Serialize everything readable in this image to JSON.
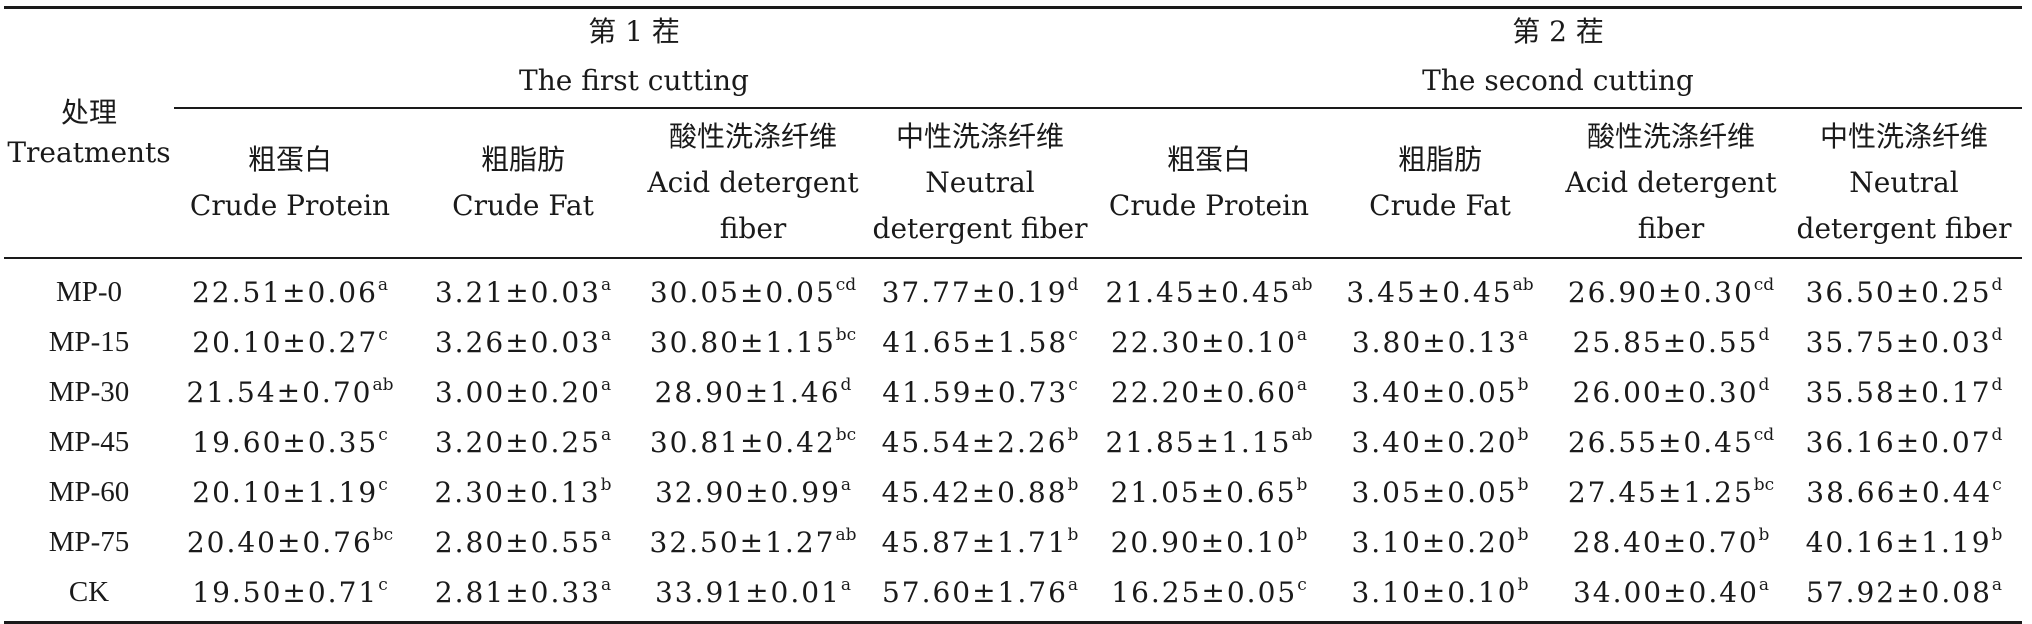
{
  "header": {
    "treatment_cn": "处理",
    "treatment_en": "Treatments",
    "groups": [
      {
        "cn": "第 1 茬",
        "en": "The first cutting"
      },
      {
        "cn": "第 2 茬",
        "en": "The second cutting"
      }
    ],
    "columns": [
      {
        "cn": "粗蛋白",
        "en1": "Crude Protein",
        "en2": ""
      },
      {
        "cn": "粗脂肪",
        "en1": "Crude Fat",
        "en2": ""
      },
      {
        "cn": "酸性洗涤纤维",
        "en1": "Acid detergent",
        "en2": "fiber"
      },
      {
        "cn": "中性洗涤纤维",
        "en1": "Neutral",
        "en2": "detergent fiber"
      }
    ]
  },
  "rows": [
    {
      "name": "MP-0",
      "cells": [
        {
          "v": "22.51±0.06",
          "s": "a"
        },
        {
          "v": "3.21±0.03",
          "s": "a"
        },
        {
          "v": "30.05±0.05",
          "s": "cd"
        },
        {
          "v": "37.77±0.19",
          "s": "d"
        },
        {
          "v": "21.45±0.45",
          "s": "ab"
        },
        {
          "v": "3.45±0.45",
          "s": "ab"
        },
        {
          "v": "26.90±0.30",
          "s": "cd"
        },
        {
          "v": "36.50±0.25",
          "s": "d"
        }
      ]
    },
    {
      "name": "MP-15",
      "cells": [
        {
          "v": "20.10±0.27",
          "s": "c"
        },
        {
          "v": "3.26±0.03",
          "s": "a"
        },
        {
          "v": "30.80±1.15",
          "s": "bc"
        },
        {
          "v": "41.65±1.58",
          "s": "c"
        },
        {
          "v": "22.30±0.10",
          "s": "a"
        },
        {
          "v": "3.80±0.13",
          "s": "a"
        },
        {
          "v": "25.85±0.55",
          "s": "d"
        },
        {
          "v": "35.75±0.03",
          "s": "d"
        }
      ]
    },
    {
      "name": "MP-30",
      "cells": [
        {
          "v": "21.54±0.70",
          "s": "ab"
        },
        {
          "v": "3.00±0.20",
          "s": "a"
        },
        {
          "v": "28.90±1.46",
          "s": "d"
        },
        {
          "v": "41.59±0.73",
          "s": "c"
        },
        {
          "v": "22.20±0.60",
          "s": "a"
        },
        {
          "v": "3.40±0.05",
          "s": "b"
        },
        {
          "v": "26.00±0.30",
          "s": "d"
        },
        {
          "v": "35.58±0.17",
          "s": "d"
        }
      ]
    },
    {
      "name": "MP-45",
      "cells": [
        {
          "v": "19.60±0.35",
          "s": "c"
        },
        {
          "v": "3.20±0.25",
          "s": "a"
        },
        {
          "v": "30.81±0.42",
          "s": "bc"
        },
        {
          "v": "45.54±2.26",
          "s": "b"
        },
        {
          "v": "21.85±1.15",
          "s": "ab"
        },
        {
          "v": "3.40±0.20",
          "s": "b"
        },
        {
          "v": "26.55±0.45",
          "s": "cd"
        },
        {
          "v": "36.16±0.07",
          "s": "d"
        }
      ]
    },
    {
      "name": "MP-60",
      "cells": [
        {
          "v": "20.10±1.19",
          "s": "c"
        },
        {
          "v": "2.30±0.13",
          "s": "b"
        },
        {
          "v": "32.90±0.99",
          "s": "a"
        },
        {
          "v": "45.42±0.88",
          "s": "b"
        },
        {
          "v": "21.05±0.65",
          "s": "b"
        },
        {
          "v": "3.05±0.05",
          "s": "b"
        },
        {
          "v": "27.45±1.25",
          "s": "bc"
        },
        {
          "v": "38.66±0.44",
          "s": "c"
        }
      ]
    },
    {
      "name": "MP-75",
      "cells": [
        {
          "v": "20.40±0.76",
          "s": "bc"
        },
        {
          "v": "2.80±0.55",
          "s": "a"
        },
        {
          "v": "32.50±1.27",
          "s": "ab"
        },
        {
          "v": "45.87±1.71",
          "s": "b"
        },
        {
          "v": "20.90±0.10",
          "s": "b"
        },
        {
          "v": "3.10±0.20",
          "s": "b"
        },
        {
          "v": "28.40±0.70",
          "s": "b"
        },
        {
          "v": "40.16±1.19",
          "s": "b"
        }
      ]
    },
    {
      "name": "CK",
      "cells": [
        {
          "v": "19.50±0.71",
          "s": "c"
        },
        {
          "v": "2.81±0.33",
          "s": "a"
        },
        {
          "v": "33.91±0.01",
          "s": "a"
        },
        {
          "v": "57.60±1.76",
          "s": "a"
        },
        {
          "v": "16.25±0.05",
          "s": "c"
        },
        {
          "v": "3.10±0.10",
          "s": "b"
        },
        {
          "v": "34.00±0.40",
          "s": "a"
        },
        {
          "v": "57.92±0.08",
          "s": "a"
        }
      ]
    }
  ]
}
